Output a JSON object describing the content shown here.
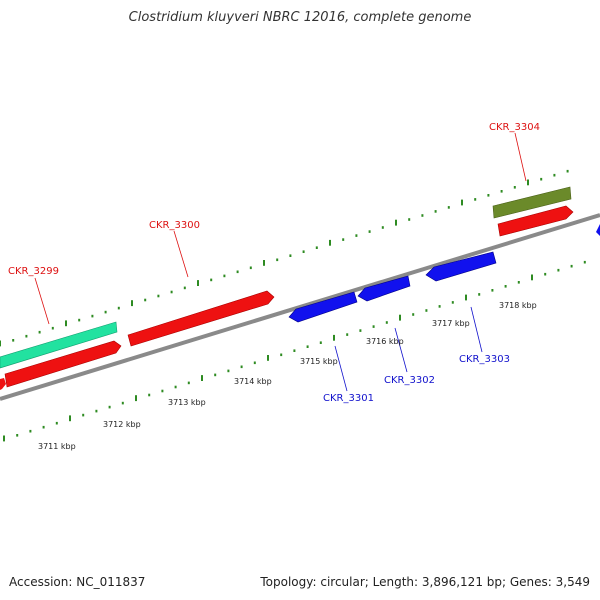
{
  "title": "Clostridium kluyveri NBRC 12016, complete genome",
  "footer": {
    "accession": "Accession: NC_011837",
    "summary": "Topology: circular; Length: 3,896,121 bp; Genes: 3,549"
  },
  "colors": {
    "backbone": "#8a8a8a",
    "tick": "#2e8b22",
    "forward_gene": "#ee1111",
    "reverse_gene": "#1111ee",
    "teal_gene": "#22e2a0",
    "olive_gene": "#6b8a2a",
    "forward_label": "#dd1111",
    "reverse_label": "#1111cc"
  },
  "kbp_labels": [
    "3711 kbp",
    "3712 kbp",
    "3713 kbp",
    "3714 kbp",
    "3715 kbp",
    "3716 kbp",
    "3717 kbp",
    "3718 kbp"
  ],
  "gene_labels": {
    "ckr_3299": "CKR_3299",
    "ckr_3300": "CKR_3300",
    "ckr_3301": "CKR_3301",
    "ckr_3302": "CKR_3302",
    "ckr_3303": "CKR_3303",
    "ckr_3304": "CKR_3304"
  }
}
